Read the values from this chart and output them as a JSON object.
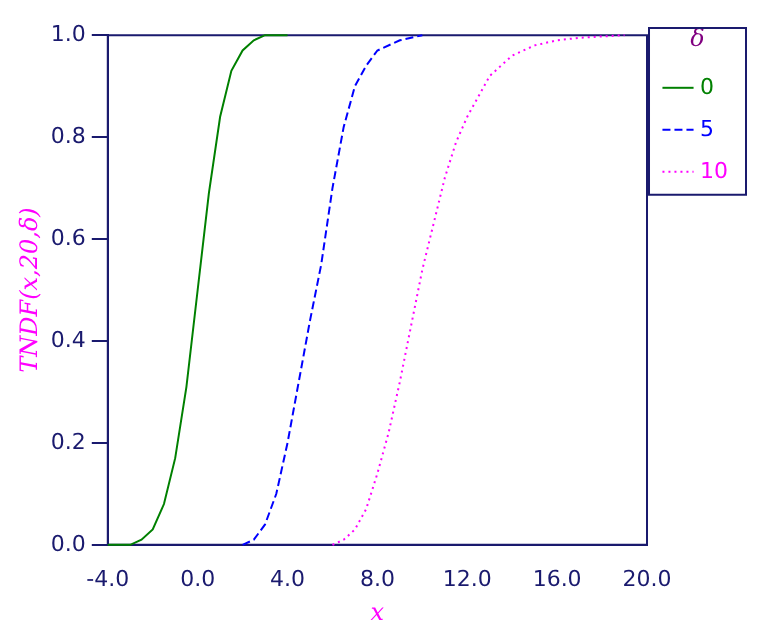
{
  "chart_data": {
    "type": "line",
    "xlabel": "x",
    "ylabel": "TNDF(x,20,δ)",
    "legend_title": "δ",
    "legend": "top right",
    "xlim": [
      -4,
      20
    ],
    "xticks": [
      {
        "value": -4,
        "label": "-4.0"
      },
      {
        "value": 0,
        "label": "0.0"
      },
      {
        "value": 4,
        "label": "4.0"
      },
      {
        "value": 8,
        "label": "8.0"
      },
      {
        "value": 12,
        "label": "12.0"
      },
      {
        "value": 16,
        "label": "16.0"
      },
      {
        "value": 20,
        "label": "20.0"
      }
    ],
    "ylim": [
      0,
      1
    ],
    "yticks": [
      {
        "value": 0,
        "label": "0.0"
      },
      {
        "value": 0.2,
        "label": "0.2"
      },
      {
        "value": 0.4,
        "label": "0.4"
      },
      {
        "value": 0.6,
        "label": "0.6"
      },
      {
        "value": 0.8,
        "label": "0.8"
      },
      {
        "value": 1,
        "label": "1.0"
      }
    ],
    "grid": false,
    "marker": "none",
    "series": [
      {
        "name": "0",
        "color": "#008000",
        "line_style": "solid",
        "x": [
          -4,
          -3,
          -2.5,
          -2,
          -1.5,
          -1,
          -0.5,
          0,
          0.5,
          1,
          1.5,
          2,
          2.5,
          3,
          4
        ],
        "values": [
          0,
          0,
          0.01,
          0.03,
          0.08,
          0.17,
          0.31,
          0.5,
          0.69,
          0.84,
          0.93,
          0.97,
          0.99,
          1,
          1
        ]
      },
      {
        "name": "5",
        "color": "#0000ff",
        "line_style": "dashed",
        "x": [
          2,
          2.5,
          3,
          3.5,
          4,
          4.5,
          5,
          5.5,
          6,
          6.5,
          7,
          7.5,
          8,
          9,
          10
        ],
        "values": [
          0,
          0.01,
          0.04,
          0.1,
          0.2,
          0.32,
          0.44,
          0.55,
          0.7,
          0.82,
          0.9,
          0.94,
          0.97,
          0.99,
          1
        ]
      },
      {
        "name": "10",
        "color": "#ff00ff",
        "line_style": "dotted",
        "x": [
          6,
          6.5,
          7,
          7.5,
          8,
          8.5,
          9,
          9.5,
          10,
          10.5,
          11,
          11.5,
          12,
          13,
          14,
          15,
          16,
          17,
          19
        ],
        "values": [
          0,
          0.01,
          0.03,
          0.07,
          0.14,
          0.22,
          0.32,
          0.43,
          0.54,
          0.63,
          0.72,
          0.79,
          0.84,
          0.92,
          0.96,
          0.98,
          0.99,
          0.995,
          1
        ]
      }
    ]
  }
}
